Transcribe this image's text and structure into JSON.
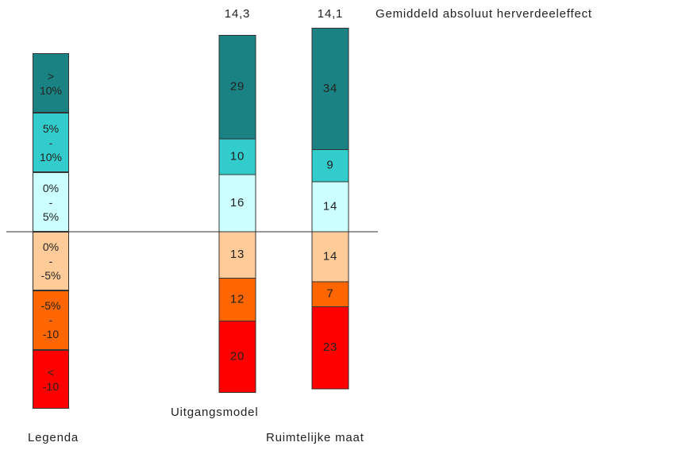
{
  "chart_data": {
    "type": "diverging-stacked-bar",
    "categories": [
      "Uitgangsmodel",
      "Ruimtelijke maat"
    ],
    "series": [
      {
        "name": "> 10%",
        "color": "#1a8282",
        "direction": "up",
        "values": [
          29,
          34
        ]
      },
      {
        "name": "5% - 10%",
        "color": "#33cccc",
        "direction": "up",
        "values": [
          10,
          9
        ]
      },
      {
        "name": "0% - 5%",
        "color": "#ccffff",
        "direction": "up",
        "values": [
          16,
          14
        ]
      },
      {
        "name": "0% - -5%",
        "color": "#ffcc99",
        "direction": "down",
        "values": [
          13,
          14
        ]
      },
      {
        "name": "-5% - -10",
        "color": "#ff6600",
        "direction": "down",
        "values": [
          12,
          7
        ]
      },
      {
        "name": "< -10",
        "color": "#ff0000",
        "direction": "down",
        "values": [
          20,
          23
        ]
      }
    ],
    "totals": {
      "values": [
        14.3,
        14.1
      ],
      "value_labels": [
        "14,3",
        "14,1"
      ]
    },
    "annotation": "Gemiddeld absoluut herverdeeleffect",
    "legend_title": "Legenda"
  }
}
